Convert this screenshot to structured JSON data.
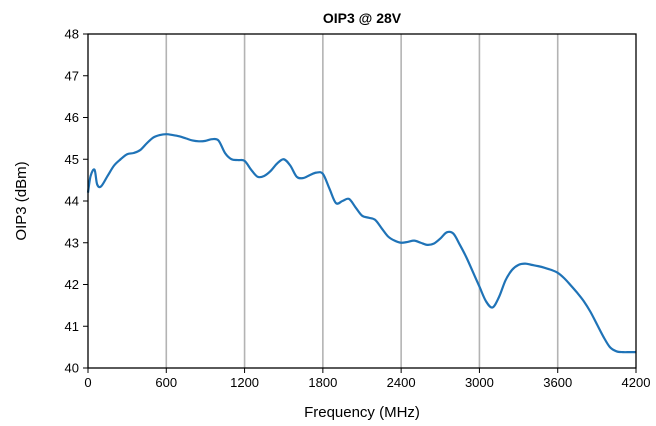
{
  "chart_data": {
    "type": "line",
    "title": "OIP3 @ 28V",
    "xlabel": "Frequency (MHz)",
    "ylabel": "OIP3 (dBm)",
    "xlim": [
      0,
      4200
    ],
    "ylim": [
      40,
      48
    ],
    "xticks": [
      0,
      600,
      1200,
      1800,
      2400,
      3000,
      3600,
      4200
    ],
    "yticks": [
      40,
      41,
      42,
      43,
      44,
      45,
      46,
      47,
      48
    ],
    "grid": {
      "vertical": true,
      "horizontal": false
    },
    "colors": {
      "line": "#1f73b7",
      "grid": "#b3b3b3",
      "axis": "#000000"
    },
    "series": [
      {
        "x": [
          0,
          20,
          50,
          70,
          100,
          150,
          200,
          250,
          300,
          350,
          400,
          450,
          500,
          550,
          600,
          650,
          700,
          750,
          800,
          850,
          900,
          950,
          1000,
          1050,
          1100,
          1150,
          1200,
          1250,
          1300,
          1350,
          1400,
          1450,
          1500,
          1550,
          1600,
          1650,
          1700,
          1750,
          1800,
          1850,
          1900,
          1950,
          2000,
          2050,
          2100,
          2150,
          2200,
          2250,
          2300,
          2350,
          2400,
          2450,
          2500,
          2550,
          2600,
          2650,
          2700,
          2750,
          2800,
          2850,
          2900,
          2950,
          3000,
          3050,
          3100,
          3150,
          3200,
          3250,
          3300,
          3350,
          3400,
          3450,
          3500,
          3550,
          3600,
          3650,
          3700,
          3750,
          3800,
          3850,
          3900,
          3950,
          4000,
          4050,
          4100,
          4150,
          4200
        ],
        "values": [
          44.2,
          44.6,
          44.75,
          44.4,
          44.35,
          44.6,
          44.85,
          45.0,
          45.12,
          45.15,
          45.22,
          45.38,
          45.52,
          45.58,
          45.6,
          45.58,
          45.55,
          45.5,
          45.45,
          45.43,
          45.44,
          45.48,
          45.45,
          45.15,
          45.0,
          44.98,
          44.96,
          44.75,
          44.58,
          44.6,
          44.72,
          44.9,
          45.0,
          44.85,
          44.58,
          44.55,
          44.62,
          44.68,
          44.65,
          44.3,
          43.95,
          44.0,
          44.05,
          43.85,
          43.65,
          43.6,
          43.55,
          43.35,
          43.15,
          43.05,
          43.0,
          43.02,
          43.05,
          43.0,
          42.95,
          42.98,
          43.1,
          43.25,
          43.22,
          42.95,
          42.65,
          42.3,
          41.95,
          41.6,
          41.45,
          41.7,
          42.1,
          42.35,
          42.47,
          42.5,
          42.47,
          42.44,
          42.4,
          42.35,
          42.28,
          42.15,
          41.98,
          41.8,
          41.6,
          41.35,
          41.05,
          40.75,
          40.5,
          40.4,
          40.38,
          40.38,
          40.38
        ]
      }
    ]
  }
}
